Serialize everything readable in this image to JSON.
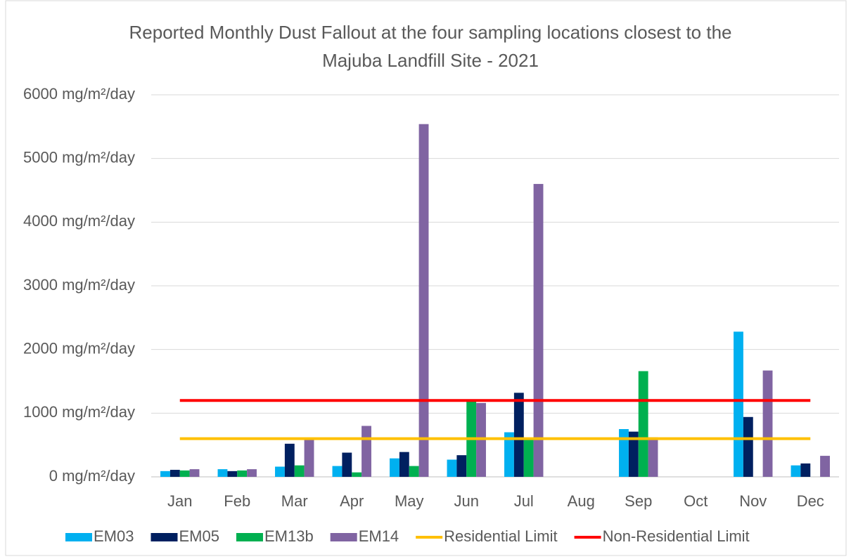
{
  "chart_data": {
    "type": "bar",
    "title": "Reported Monthly Dust Fallout at the four sampling locations closest to the",
    "subtitle": "Majuba Landfill Site - 2021",
    "categories": [
      "Jan",
      "Feb",
      "Mar",
      "Apr",
      "May",
      "Jun",
      "Jul",
      "Aug",
      "Sep",
      "Oct",
      "Nov",
      "Dec"
    ],
    "series": [
      {
        "name": "EM03",
        "color": "#00b0f0",
        "values": [
          90,
          120,
          160,
          170,
          290,
          270,
          700,
          null,
          750,
          null,
          2280,
          180
        ]
      },
      {
        "name": "EM05",
        "color": "#002060",
        "values": [
          110,
          90,
          520,
          380,
          390,
          340,
          1320,
          null,
          710,
          null,
          940,
          210
        ]
      },
      {
        "name": "EM13b",
        "color": "#00b050",
        "values": [
          100,
          100,
          180,
          70,
          170,
          1200,
          600,
          null,
          1660,
          null,
          null,
          null
        ]
      },
      {
        "name": "EM14",
        "color": "#8064a2",
        "values": [
          120,
          120,
          600,
          800,
          5540,
          1160,
          4600,
          null,
          620,
          null,
          1670,
          330
        ]
      },
      {
        "name": "Residential Limit",
        "color": "#ffc000",
        "type": "line",
        "values": [
          600,
          600,
          600,
          600,
          600,
          600,
          600,
          600,
          600,
          600,
          600,
          600
        ]
      },
      {
        "name": "Non-Residential Limit",
        "color": "#ff0000",
        "type": "line",
        "values": [
          1200,
          1200,
          1200,
          1200,
          1200,
          1200,
          1200,
          1200,
          1200,
          1200,
          1200,
          1200
        ]
      }
    ],
    "ylim": [
      0,
      6000
    ],
    "yticks": [
      {
        "value": 0,
        "label": "0 mg/m²/day"
      },
      {
        "value": 1000,
        "label": "1000 mg/m²/day"
      },
      {
        "value": 2000,
        "label": "2000 mg/m²/day"
      },
      {
        "value": 3000,
        "label": "3000 mg/m²/day"
      },
      {
        "value": 4000,
        "label": "4000 mg/m²/day"
      },
      {
        "value": 5000,
        "label": "5000 mg/m²/day"
      },
      {
        "value": 6000,
        "label": "6000 mg/m²/day"
      }
    ],
    "grid": true,
    "legend": "bottom"
  }
}
